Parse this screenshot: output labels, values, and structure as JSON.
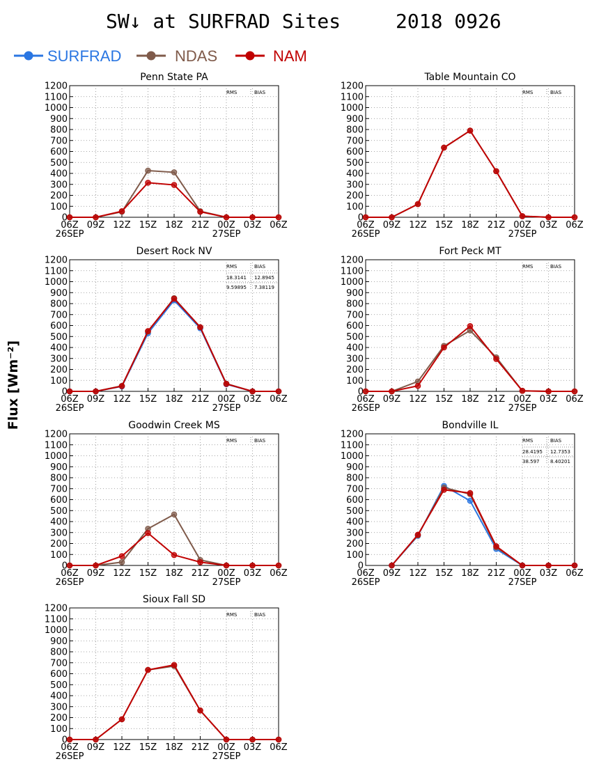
{
  "figure": {
    "title_left": "SW↓ at SURFRAD Sites",
    "title_right": "2018 0926",
    "ylabel": "Flux [Wm⁻²]"
  },
  "legend": [
    {
      "name": "SURFRAD",
      "color": "#2a76e2"
    },
    {
      "name": "NDAS",
      "color": "#7f5a4a"
    },
    {
      "name": "NAM",
      "color": "#c00000"
    }
  ],
  "chart_data": [
    {
      "type": "line",
      "title": "Penn State PA",
      "x": [
        "06Z",
        "09Z",
        "12Z",
        "15Z",
        "18Z",
        "21Z",
        "00Z",
        "03Z",
        "06Z"
      ],
      "date_labels": [
        "26SEP",
        "27SEP"
      ],
      "ylim": [
        0,
        1200
      ],
      "yticks": [
        0,
        100,
        200,
        300,
        400,
        500,
        600,
        700,
        800,
        900,
        1000,
        1100,
        1200
      ],
      "stats_header": [
        "RMS",
        "BIAS"
      ],
      "stats": [],
      "series": [
        {
          "name": "SURFRAD",
          "values": [
            null,
            null,
            null,
            null,
            null,
            null,
            null,
            null,
            null
          ]
        },
        {
          "name": "NDAS",
          "values": [
            0,
            0,
            50,
            425,
            410,
            55,
            0,
            0,
            0
          ]
        },
        {
          "name": "NAM",
          "values": [
            0,
            0,
            55,
            315,
            295,
            50,
            0,
            0,
            0
          ]
        }
      ]
    },
    {
      "type": "line",
      "title": "Table Mountain CO",
      "x": [
        "06Z",
        "09Z",
        "12Z",
        "15Z",
        "18Z",
        "21Z",
        "00Z",
        "03Z",
        "06Z"
      ],
      "date_labels": [
        "26SEP",
        "27SEP"
      ],
      "ylim": [
        0,
        1200
      ],
      "yticks": [
        0,
        100,
        200,
        300,
        400,
        500,
        600,
        700,
        800,
        900,
        1000,
        1100,
        1200
      ],
      "stats_header": [
        "RMS",
        "BIAS"
      ],
      "stats": [],
      "series": [
        {
          "name": "SURFRAD",
          "values": [
            null,
            null,
            null,
            null,
            null,
            null,
            null,
            null,
            null
          ]
        },
        {
          "name": "NDAS",
          "values": [
            0,
            0,
            120,
            635,
            790,
            420,
            10,
            0,
            0
          ]
        },
        {
          "name": "NAM",
          "values": [
            0,
            0,
            120,
            635,
            790,
            420,
            10,
            0,
            0
          ]
        }
      ]
    },
    {
      "type": "line",
      "title": "Desert Rock NV",
      "x": [
        "06Z",
        "09Z",
        "12Z",
        "15Z",
        "18Z",
        "21Z",
        "00Z",
        "03Z",
        "06Z"
      ],
      "date_labels": [
        "26SEP",
        "27SEP"
      ],
      "ylim": [
        0,
        1200
      ],
      "yticks": [
        0,
        100,
        200,
        300,
        400,
        500,
        600,
        700,
        800,
        900,
        1000,
        1100,
        1200
      ],
      "stats_header": [
        "RMS",
        "BIAS"
      ],
      "stats": [
        {
          "color": "#7f5a4a",
          "rms": "18.3141",
          "bias": "12.8945"
        },
        {
          "color": "#c00000",
          "rms": "9.59895",
          "bias": "7.38119"
        }
      ],
      "series": [
        {
          "name": "SURFRAD",
          "values": [
            0,
            0,
            45,
            530,
            830,
            575,
            65,
            0,
            0
          ]
        },
        {
          "name": "NDAS",
          "values": [
            0,
            0,
            50,
            545,
            850,
            585,
            70,
            0,
            0
          ]
        },
        {
          "name": "NAM",
          "values": [
            0,
            0,
            48,
            550,
            845,
            585,
            68,
            0,
            0
          ]
        }
      ]
    },
    {
      "type": "line",
      "title": "Fort Peck MT",
      "x": [
        "06Z",
        "09Z",
        "12Z",
        "15Z",
        "18Z",
        "21Z",
        "00Z",
        "03Z",
        "06Z"
      ],
      "date_labels": [
        "26SEP",
        "27SEP"
      ],
      "ylim": [
        0,
        1200
      ],
      "yticks": [
        0,
        100,
        200,
        300,
        400,
        500,
        600,
        700,
        800,
        900,
        1000,
        1100,
        1200
      ],
      "stats_header": [
        "RMS",
        "BIAS"
      ],
      "stats": [],
      "series": [
        {
          "name": "SURFRAD",
          "values": [
            null,
            null,
            null,
            null,
            null,
            null,
            null,
            null,
            null
          ]
        },
        {
          "name": "NDAS",
          "values": [
            0,
            0,
            90,
            415,
            555,
            310,
            5,
            0,
            0
          ]
        },
        {
          "name": "NAM",
          "values": [
            0,
            0,
            50,
            400,
            595,
            295,
            5,
            0,
            0
          ]
        }
      ]
    },
    {
      "type": "line",
      "title": "Goodwin Creek MS",
      "x": [
        "06Z",
        "09Z",
        "12Z",
        "15Z",
        "18Z",
        "21Z",
        "00Z",
        "03Z",
        "06Z"
      ],
      "date_labels": [
        "26SEP",
        "27SEP"
      ],
      "ylim": [
        0,
        1200
      ],
      "yticks": [
        0,
        100,
        200,
        300,
        400,
        500,
        600,
        700,
        800,
        900,
        1000,
        1100,
        1200
      ],
      "stats_header": [
        "RMS",
        "BIAS"
      ],
      "stats": [],
      "series": [
        {
          "name": "SURFRAD",
          "values": [
            null,
            null,
            null,
            null,
            null,
            null,
            null,
            null,
            null
          ]
        },
        {
          "name": "NDAS",
          "values": [
            0,
            0,
            30,
            335,
            465,
            50,
            0,
            0,
            0
          ]
        },
        {
          "name": "NAM",
          "values": [
            0,
            0,
            85,
            295,
            95,
            30,
            0,
            0,
            0
          ]
        }
      ]
    },
    {
      "type": "line",
      "title": "Bondville IL",
      "x": [
        "06Z",
        "09Z",
        "12Z",
        "15Z",
        "18Z",
        "21Z",
        "00Z",
        "03Z",
        "06Z"
      ],
      "date_labels": [
        "26SEP",
        "27SEP"
      ],
      "ylim": [
        0,
        1200
      ],
      "yticks": [
        0,
        100,
        200,
        300,
        400,
        500,
        600,
        700,
        800,
        900,
        1000,
        1100,
        1200
      ],
      "stats_header": [
        "RMS",
        "BIAS"
      ],
      "stats": [
        {
          "color": "#7f5a4a",
          "rms": "28.4195",
          "bias": "12.7353"
        },
        {
          "color": "#c00000",
          "rms": "38.597",
          "bias": "8.40201"
        }
      ],
      "series": [
        {
          "name": "SURFRAD",
          "values": [
            null,
            0,
            270,
            725,
            590,
            150,
            0,
            0,
            0
          ]
        },
        {
          "name": "NDAS",
          "values": [
            null,
            0,
            275,
            710,
            650,
            165,
            0,
            0,
            0
          ]
        },
        {
          "name": "NAM",
          "values": [
            null,
            0,
            280,
            690,
            660,
            175,
            0,
            0,
            0
          ]
        }
      ]
    },
    {
      "type": "line",
      "title": "Sioux Fall SD",
      "x": [
        "06Z",
        "09Z",
        "12Z",
        "15Z",
        "18Z",
        "21Z",
        "00Z",
        "03Z",
        "06Z"
      ],
      "date_labels": [
        "26SEP",
        "27SEP"
      ],
      "ylim": [
        0,
        1200
      ],
      "yticks": [
        0,
        100,
        200,
        300,
        400,
        500,
        600,
        700,
        800,
        900,
        1000,
        1100,
        1200
      ],
      "stats_header": [
        "RMS",
        "BIAS"
      ],
      "stats": [],
      "series": [
        {
          "name": "SURFRAD",
          "values": [
            null,
            null,
            null,
            null,
            null,
            null,
            null,
            null,
            null
          ]
        },
        {
          "name": "NDAS",
          "values": [
            0,
            0,
            185,
            635,
            670,
            265,
            0,
            0,
            0
          ]
        },
        {
          "name": "NAM",
          "values": [
            0,
            0,
            185,
            635,
            680,
            265,
            0,
            0,
            0
          ]
        }
      ]
    }
  ]
}
